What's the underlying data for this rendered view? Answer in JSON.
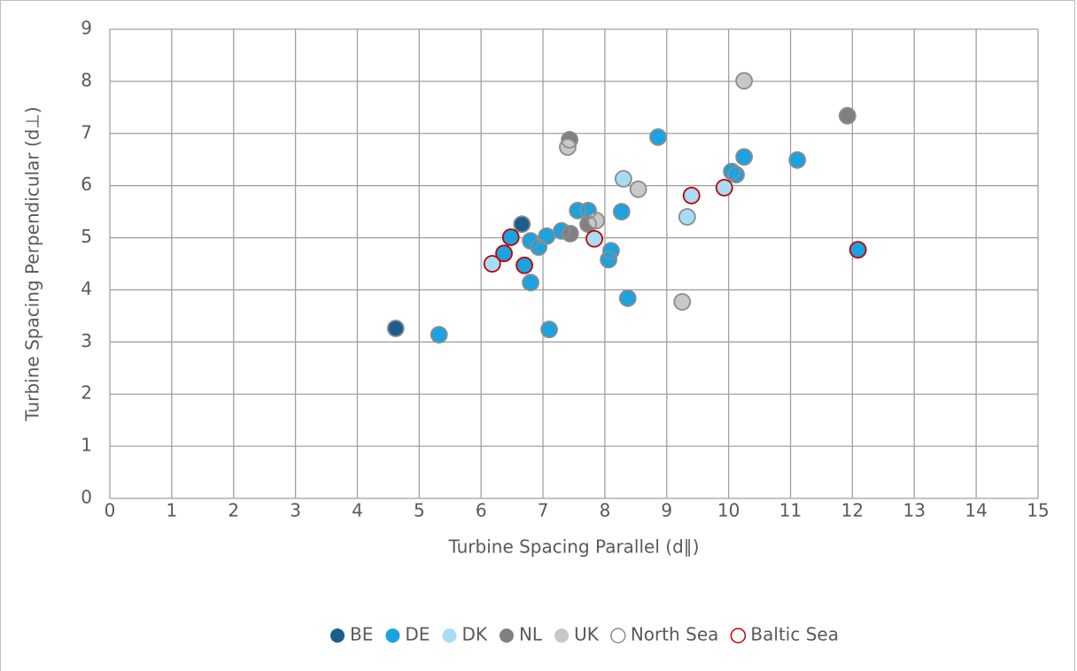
{
  "chart_data": {
    "type": "scatter",
    "x_label": "Turbine Spacing Parallel (d∥)",
    "y_label": "Turbine Spacing Perpendicular (d⊥)",
    "xlim": [
      0,
      15
    ],
    "xticks": [
      0,
      1,
      2,
      3,
      4,
      5,
      6,
      7,
      8,
      9,
      10,
      11,
      12,
      13,
      14,
      15
    ],
    "ylim": [
      0,
      9
    ],
    "yticks": [
      0,
      1,
      2,
      3,
      4,
      5,
      6,
      7,
      8,
      9
    ],
    "grid": true,
    "legend": "bottom",
    "series": [
      {
        "name": "BE",
        "color": "#1b5e8c",
        "marker": "filled",
        "x": [
          4.62,
          6.66
        ],
        "values": [
          3.26,
          5.26
        ]
      },
      {
        "name": "DE",
        "color": "#1aa3e0",
        "marker": "filled",
        "x": [
          5.32,
          6.37,
          6.48,
          6.7,
          6.8,
          6.93,
          6.8,
          7.06,
          7.1,
          7.3,
          7.56,
          7.73,
          8.1,
          8.06,
          8.27,
          8.37,
          8.86,
          10.05,
          10.12,
          10.25,
          11.11,
          12.09
        ],
        "values": [
          3.14,
          4.7,
          5.01,
          4.47,
          4.94,
          4.82,
          4.14,
          5.03,
          3.24,
          5.13,
          5.52,
          5.52,
          4.75,
          4.58,
          5.5,
          3.84,
          6.93,
          6.27,
          6.21,
          6.55,
          6.49,
          4.77
        ]
      },
      {
        "name": "DK",
        "color": "#a6dcf5",
        "marker": "filled",
        "x": [
          6.18,
          7.83,
          8.3,
          9.33,
          9.4,
          9.93
        ],
        "values": [
          4.5,
          4.98,
          6.13,
          5.4,
          5.81,
          5.96
        ]
      },
      {
        "name": "NL",
        "color": "#808080",
        "marker": "filled",
        "x": [
          7.43,
          7.44,
          7.73,
          11.92
        ],
        "values": [
          6.88,
          5.08,
          5.26,
          7.34
        ]
      },
      {
        "name": "UK",
        "color": "#c8c8c8",
        "marker": "filled",
        "x": [
          7.4,
          7.86,
          8.54,
          9.25,
          10.25
        ],
        "values": [
          6.74,
          5.33,
          5.93,
          3.77,
          8.01
        ]
      },
      {
        "name": "North Sea",
        "color": "#8c8c8c",
        "marker": "open",
        "x": [
          4.62,
          6.66,
          5.32,
          6.8,
          6.93,
          6.8,
          7.06,
          7.1,
          7.3,
          7.56,
          7.73,
          8.1,
          8.06,
          8.27,
          8.37,
          8.86,
          10.05,
          10.12,
          10.25,
          11.11,
          8.3,
          9.33,
          7.43,
          7.44,
          7.73,
          11.92,
          7.4,
          7.86,
          8.54,
          9.25,
          10.25
        ],
        "values": [
          3.26,
          5.26,
          3.14,
          4.94,
          4.82,
          4.14,
          5.03,
          3.24,
          5.13,
          5.52,
          5.52,
          4.75,
          4.58,
          5.5,
          3.84,
          6.93,
          6.27,
          6.21,
          6.55,
          6.49,
          6.13,
          5.4,
          6.88,
          5.08,
          5.26,
          7.34,
          6.74,
          5.33,
          5.93,
          3.77,
          8.01
        ]
      },
      {
        "name": "Baltic Sea",
        "color": "#c00000",
        "marker": "open",
        "x": [
          6.37,
          6.48,
          6.7,
          12.09,
          6.18,
          7.83,
          9.4,
          9.93
        ],
        "values": [
          4.7,
          5.01,
          4.47,
          4.77,
          4.5,
          4.98,
          5.81,
          5.96
        ]
      }
    ]
  }
}
